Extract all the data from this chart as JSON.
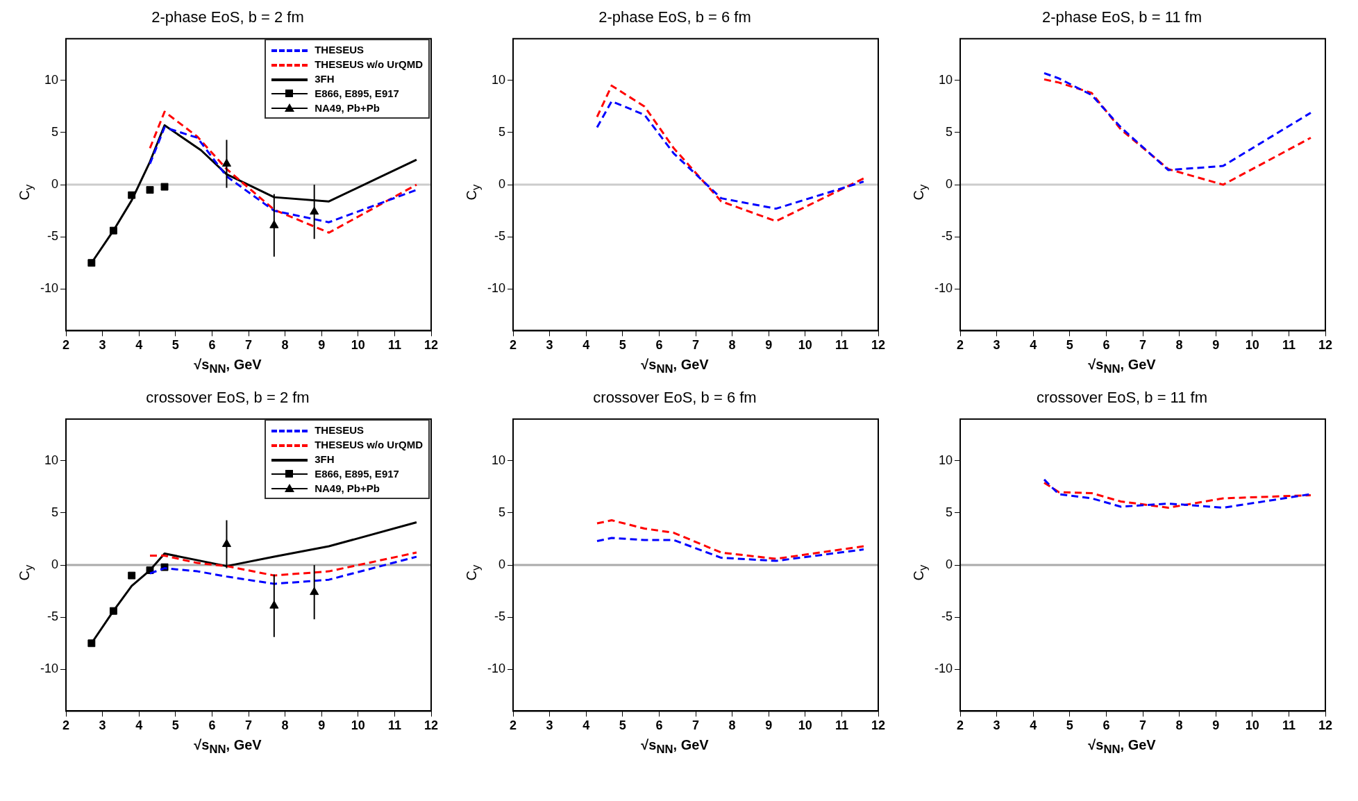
{
  "chart_data": [
    {
      "type": "line",
      "title": "2-phase EoS, b = 2 fm",
      "xlabel": "√s$_{NN}$, GeV",
      "ylabel": "C$_{y}$",
      "xlim": [
        2,
        12
      ],
      "xticks": [
        2,
        3,
        4,
        5,
        6,
        7,
        8,
        9,
        10,
        11,
        12
      ],
      "ylim": [
        -14,
        14
      ],
      "yticks": [
        -10,
        -5,
        0,
        5,
        10
      ],
      "x": [
        4.3,
        4.7,
        5.6,
        6.4,
        7.7,
        9.2,
        11.6
      ],
      "legend": "top right",
      "ref_lines": [
        {
          "axis": "y",
          "value": 0,
          "color": "#cccccc"
        }
      ],
      "series": [
        {
          "name": "THESEUS",
          "color": "#0000ff",
          "line_style": "dashed",
          "values": [
            2.0,
            5.5,
            4.5,
            0.8,
            -2.5,
            -3.6,
            -0.5
          ]
        },
        {
          "name": "THESEUS w/o UrQMD",
          "color": "#ff0000",
          "line_style": "dashed",
          "values": [
            3.5,
            7.0,
            4.6,
            1.5,
            -2.4,
            -4.6,
            0.0
          ]
        },
        {
          "name": "3FH",
          "color": "#000000",
          "line_style": "solid",
          "x": [
            2.7,
            3.3,
            3.8,
            4.3,
            4.7,
            5.7,
            6.4,
            7.7,
            9.2,
            11.6
          ],
          "values": [
            -7.5,
            -4.4,
            -1.5,
            2.2,
            5.7,
            3.3,
            1.0,
            -1.2,
            -1.6,
            2.4
          ]
        },
        {
          "name": "E866, E895, E917",
          "type": "scatter",
          "color": "#000000",
          "marker": "square",
          "x": [
            2.7,
            3.3,
            3.8,
            4.3,
            4.7
          ],
          "values": [
            -7.5,
            -4.4,
            -1.0,
            -0.5,
            -0.2
          ]
        },
        {
          "name": "NA49, Pb+Pb",
          "type": "scatter",
          "color": "#000000",
          "marker": "triangle",
          "x": [
            6.4,
            7.7,
            8.8
          ],
          "values": [
            2.0,
            -3.9,
            -2.6
          ],
          "errors": [
            2.3,
            3.0,
            2.6
          ]
        }
      ]
    },
    {
      "type": "line",
      "title": "2-phase EoS, b = 6 fm",
      "xlabel": "√s$_{NN}$, GeV",
      "ylabel": "C$_{y}$",
      "xlim": [
        2,
        12
      ],
      "xticks": [
        2,
        3,
        4,
        5,
        6,
        7,
        8,
        9,
        10,
        11,
        12
      ],
      "ylim": [
        -14,
        14
      ],
      "yticks": [
        -10,
        -5,
        0,
        5,
        10
      ],
      "x": [
        4.3,
        4.7,
        5.6,
        6.4,
        7.7,
        9.2,
        11.6
      ],
      "ref_lines": [
        {
          "axis": "y",
          "value": 0,
          "color": "#cccccc"
        }
      ],
      "series": [
        {
          "color": "#0000ff",
          "line_style": "dashed",
          "values": [
            5.5,
            8.0,
            6.7,
            3.0,
            -1.3,
            -2.3,
            0.3
          ]
        },
        {
          "color": "#ff0000",
          "line_style": "dashed",
          "values": [
            6.5,
            9.5,
            7.5,
            3.5,
            -1.6,
            -3.5,
            0.6
          ]
        }
      ]
    },
    {
      "type": "line",
      "title": "2-phase EoS, b = 11 fm",
      "xlabel": "√s$_{NN}$, GeV",
      "ylabel": "C$_{y}$",
      "xlim": [
        2,
        12
      ],
      "xticks": [
        2,
        3,
        4,
        5,
        6,
        7,
        8,
        9,
        10,
        11,
        12
      ],
      "ylim": [
        -14,
        14
      ],
      "yticks": [
        -10,
        -5,
        0,
        5,
        10
      ],
      "x": [
        4.3,
        4.7,
        5.6,
        6.4,
        7.7,
        9.2,
        11.6
      ],
      "ref_lines": [
        {
          "axis": "y",
          "value": 0,
          "color": "#cccccc"
        }
      ],
      "series": [
        {
          "color": "#0000ff",
          "line_style": "dashed",
          "values": [
            10.7,
            10.2,
            8.6,
            5.5,
            1.4,
            1.8,
            6.9
          ]
        },
        {
          "color": "#ff0000",
          "line_style": "dashed",
          "values": [
            10.1,
            9.8,
            8.8,
            5.3,
            1.5,
            0.0,
            4.5
          ]
        }
      ]
    },
    {
      "type": "line",
      "title": "crossover EoS, b = 2 fm",
      "xlabel": "√s$_{NN}$, GeV",
      "ylabel": "C$_{y}$",
      "xlim": [
        2,
        12
      ],
      "xticks": [
        2,
        3,
        4,
        5,
        6,
        7,
        8,
        9,
        10,
        11,
        12
      ],
      "ylim": [
        -14,
        14
      ],
      "yticks": [
        -10,
        -5,
        0,
        5,
        10
      ],
      "x": [
        4.3,
        4.7,
        5.6,
        6.4,
        7.7,
        9.2,
        11.6
      ],
      "legend": "top right",
      "ref_lines": [
        {
          "axis": "y",
          "value": 0,
          "color": "#aaaaaa"
        }
      ],
      "series": [
        {
          "name": "THESEUS",
          "color": "#0000ff",
          "line_style": "dashed",
          "values": [
            -0.8,
            -0.3,
            -0.6,
            -1.1,
            -1.8,
            -1.4,
            0.8
          ]
        },
        {
          "name": "THESEUS w/o UrQMD",
          "color": "#ff0000",
          "line_style": "dashed",
          "values": [
            0.9,
            0.9,
            0.2,
            -0.1,
            -1.0,
            -0.6,
            1.2
          ]
        },
        {
          "name": "3FH",
          "color": "#000000",
          "line_style": "solid",
          "x": [
            2.7,
            3.3,
            3.8,
            4.3,
            4.7,
            6.4,
            7.7,
            9.2,
            11.6
          ],
          "values": [
            -7.5,
            -4.4,
            -2.0,
            -0.5,
            1.1,
            -0.1,
            0.8,
            1.8,
            4.1
          ]
        },
        {
          "name": "E866, E895, E917",
          "type": "scatter",
          "color": "#000000",
          "marker": "square",
          "x": [
            2.7,
            3.3,
            3.8,
            4.3,
            4.7
          ],
          "values": [
            -7.5,
            -4.4,
            -1.0,
            -0.5,
            -0.2
          ]
        },
        {
          "name": "NA49, Pb+Pb",
          "type": "scatter",
          "color": "#000000",
          "marker": "triangle",
          "x": [
            6.4,
            7.7,
            8.8
          ],
          "values": [
            2.0,
            -3.9,
            -2.6
          ],
          "errors": [
            2.3,
            3.0,
            2.6
          ]
        }
      ]
    },
    {
      "type": "line",
      "title": "crossover EoS, b = 6 fm",
      "xlabel": "√s$_{NN}$, GeV",
      "ylabel": "C$_{y}$",
      "xlim": [
        2,
        12
      ],
      "xticks": [
        2,
        3,
        4,
        5,
        6,
        7,
        8,
        9,
        10,
        11,
        12
      ],
      "ylim": [
        -14,
        14
      ],
      "yticks": [
        -10,
        -5,
        0,
        5,
        10
      ],
      "x": [
        4.3,
        4.7,
        5.6,
        6.4,
        7.7,
        9.2,
        11.6
      ],
      "ref_lines": [
        {
          "axis": "y",
          "value": 0,
          "color": "#aaaaaa"
        }
      ],
      "series": [
        {
          "color": "#0000ff",
          "line_style": "dashed",
          "values": [
            2.3,
            2.6,
            2.4,
            2.4,
            0.7,
            0.4,
            1.5
          ]
        },
        {
          "color": "#ff0000",
          "line_style": "dashed",
          "values": [
            4.0,
            4.3,
            3.5,
            3.1,
            1.2,
            0.6,
            1.8
          ]
        }
      ]
    },
    {
      "type": "line",
      "title": "crossover EoS, b = 11 fm",
      "xlabel": "√s$_{NN}$, GeV",
      "ylabel": "C$_{y}$",
      "xlim": [
        2,
        12
      ],
      "xticks": [
        2,
        3,
        4,
        5,
        6,
        7,
        8,
        9,
        10,
        11,
        12
      ],
      "ylim": [
        -14,
        14
      ],
      "yticks": [
        -10,
        -5,
        0,
        5,
        10
      ],
      "x": [
        4.3,
        4.7,
        5.6,
        6.4,
        7.7,
        9.2,
        11.6
      ],
      "ref_lines": [
        {
          "axis": "y",
          "value": 0,
          "color": "#aaaaaa"
        }
      ],
      "series": [
        {
          "color": "#0000ff",
          "line_style": "dashed",
          "values": [
            8.2,
            6.8,
            6.4,
            5.6,
            5.9,
            5.5,
            6.8
          ]
        },
        {
          "color": "#ff0000",
          "line_style": "dashed",
          "values": [
            7.9,
            7.0,
            6.9,
            6.1,
            5.5,
            6.4,
            6.7
          ]
        }
      ]
    }
  ]
}
